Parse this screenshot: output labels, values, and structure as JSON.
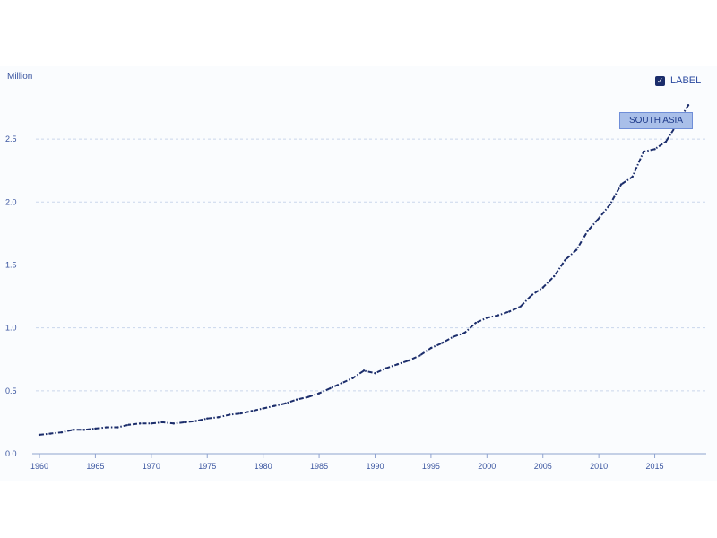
{
  "chart_data": {
    "type": "line",
    "unit_label": "Million",
    "ylim": [
      0,
      2.75
    ],
    "y_ticks": [
      0.0,
      0.5,
      1.0,
      1.5,
      2.0,
      2.5
    ],
    "y_tick_labels": [
      "0.0",
      "0.5",
      "1.0",
      "1.5",
      "2.0",
      "2.5"
    ],
    "xlim": [
      1960,
      2018
    ],
    "x_ticks": [
      1960,
      1965,
      1970,
      1975,
      1980,
      1985,
      1990,
      1995,
      2000,
      2005,
      2010,
      2015
    ],
    "x_tick_labels": [
      "1960",
      "1965",
      "1970",
      "1975",
      "1980",
      "1985",
      "1990",
      "1995",
      "2000",
      "2005",
      "2010",
      "2015"
    ],
    "grid": "horizontal-dashed",
    "legend": {
      "label": "LABEL",
      "checked": true,
      "placement": "top-right"
    },
    "series": [
      {
        "name": "SOUTH ASIA",
        "color": "#1b2d6b",
        "x": [
          1960,
          1961,
          1962,
          1963,
          1964,
          1965,
          1966,
          1967,
          1968,
          1969,
          1970,
          1971,
          1972,
          1973,
          1974,
          1975,
          1976,
          1977,
          1978,
          1979,
          1980,
          1981,
          1982,
          1983,
          1984,
          1985,
          1986,
          1987,
          1988,
          1989,
          1990,
          1991,
          1992,
          1993,
          1994,
          1995,
          1996,
          1997,
          1998,
          1999,
          2000,
          2001,
          2002,
          2003,
          2004,
          2005,
          2006,
          2007,
          2008,
          2009,
          2010,
          2011,
          2012,
          2013,
          2014,
          2015,
          2016,
          2017,
          2018
        ],
        "values": [
          0.15,
          0.16,
          0.17,
          0.19,
          0.19,
          0.2,
          0.21,
          0.21,
          0.23,
          0.24,
          0.24,
          0.25,
          0.24,
          0.25,
          0.26,
          0.28,
          0.29,
          0.31,
          0.32,
          0.34,
          0.36,
          0.38,
          0.4,
          0.43,
          0.45,
          0.48,
          0.52,
          0.56,
          0.6,
          0.66,
          0.64,
          0.68,
          0.71,
          0.74,
          0.78,
          0.84,
          0.88,
          0.93,
          0.96,
          1.04,
          1.08,
          1.1,
          1.13,
          1.17,
          1.26,
          1.32,
          1.41,
          1.54,
          1.62,
          1.77,
          1.87,
          1.98,
          2.14,
          2.2,
          2.4,
          2.42,
          2.48,
          2.62,
          2.77
        ]
      }
    ]
  }
}
